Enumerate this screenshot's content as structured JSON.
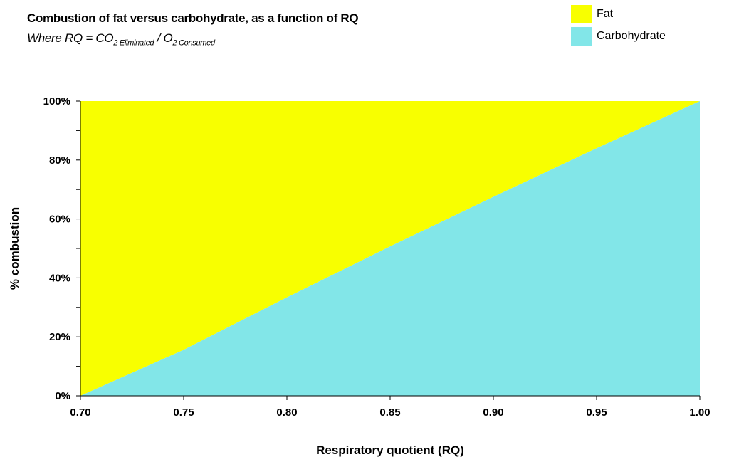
{
  "chart_data": {
    "type": "area",
    "title": "Combustion of fat versus carbohydrate, as a function of RQ",
    "subtitle": {
      "prefix": "Where RQ = CO",
      "sub1": "2 Eliminated",
      "middle": " / O",
      "sub2": "2 Consumed"
    },
    "xlabel": "Respiratory quotient (RQ)",
    "ylabel": "% combustion",
    "xlim": [
      0.7,
      1.0
    ],
    "ylim": [
      0,
      100
    ],
    "x_ticks": [
      "0.70",
      "0.75",
      "0.80",
      "0.85",
      "0.90",
      "0.95",
      "1.00"
    ],
    "y_ticks": [
      "0%",
      "20%",
      "40%",
      "60%",
      "80%",
      "100%"
    ],
    "x": [
      0.7,
      0.75,
      0.8,
      0.85,
      0.9,
      0.95,
      1.0
    ],
    "series": [
      {
        "name": "Carbohydrate",
        "color": "#82e6e8",
        "values": [
          0,
          15.6,
          33.4,
          50.7,
          67.5,
          84.0,
          100
        ]
      },
      {
        "name": "Fat",
        "color": "#f8ff00",
        "values": [
          100,
          84.4,
          66.6,
          49.3,
          32.5,
          16.0,
          0
        ]
      }
    ],
    "stacked": true,
    "legend_position": "top-right",
    "grid": false
  }
}
